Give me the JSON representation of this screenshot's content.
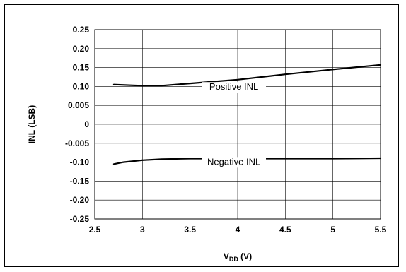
{
  "chart_data": {
    "type": "line",
    "title": "",
    "xlabel_main": "V",
    "xlabel_sub": "DD",
    "xlabel_suffix": " (V)",
    "ylabel": "INL (LSB)",
    "xlim": [
      2.5,
      5.5
    ],
    "x_ticks": [
      "2.5",
      "3",
      "3.5",
      "4",
      "4.5",
      "5",
      "5.5"
    ],
    "y_ticks": [
      "0.25",
      "0.20",
      "0.15",
      "0.10",
      "0.005",
      "0",
      "-0.005",
      "-0.10",
      "-0.15",
      "-0.20",
      "-0.25"
    ],
    "grid": true,
    "series": [
      {
        "name": "Positive INL",
        "x": [
          2.7,
          2.9,
          3.0,
          3.2,
          3.5,
          4.0,
          4.5,
          5.0,
          5.5
        ],
        "y": [
          0.105,
          0.103,
          0.102,
          0.102,
          0.108,
          0.118,
          0.132,
          0.145,
          0.157
        ]
      },
      {
        "name": "Negative INL",
        "x": [
          2.7,
          2.8,
          3.0,
          3.2,
          3.5,
          4.0,
          4.5,
          5.0,
          5.5
        ],
        "y": [
          -0.105,
          -0.1,
          -0.09,
          -0.085,
          -0.082,
          -0.082,
          -0.082,
          -0.082,
          -0.08
        ]
      }
    ],
    "annotations": [
      {
        "text": "Positive INL",
        "series": 0,
        "x": 3.96,
        "y": 0.083
      },
      {
        "text": "Negative INL",
        "series": 1,
        "x": 3.96,
        "y": -0.107
      }
    ]
  }
}
